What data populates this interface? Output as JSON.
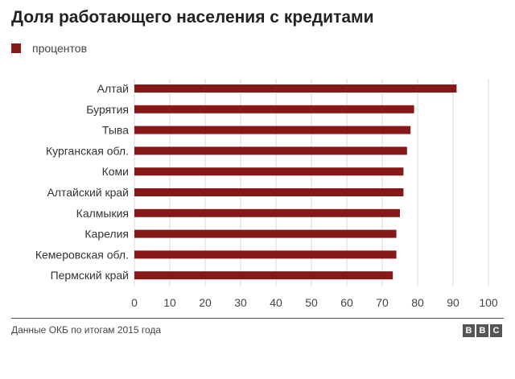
{
  "title": "Доля работающего населения с кредитами",
  "legend": {
    "label": "процентов",
    "color": "#861818"
  },
  "source": "Данные ОКБ по итогам 2015 года",
  "logo": {
    "letters": [
      "B",
      "B",
      "C"
    ],
    "color": "#555555"
  },
  "chart_data": {
    "type": "bar",
    "orientation": "horizontal",
    "title": "Доля работающего населения с кредитами",
    "xlabel": "",
    "ylabel": "",
    "xlim": [
      0,
      100
    ],
    "xticks": [
      0,
      10,
      20,
      30,
      40,
      50,
      60,
      70,
      80,
      90,
      100
    ],
    "grid": "vertical",
    "legend_position": "top-left",
    "series": [
      {
        "name": "процентов",
        "color": "#861818",
        "categories": [
          "Алтай",
          "Бурятия",
          "Тыва",
          "Курганская обл.",
          "Коми",
          "Алтайский край",
          "Калмыкия",
          "Карелия",
          "Кемеровская обл.",
          "Пермский край"
        ],
        "values": [
          91,
          79,
          78,
          77,
          76,
          76,
          75,
          74,
          74,
          73
        ]
      }
    ]
  }
}
